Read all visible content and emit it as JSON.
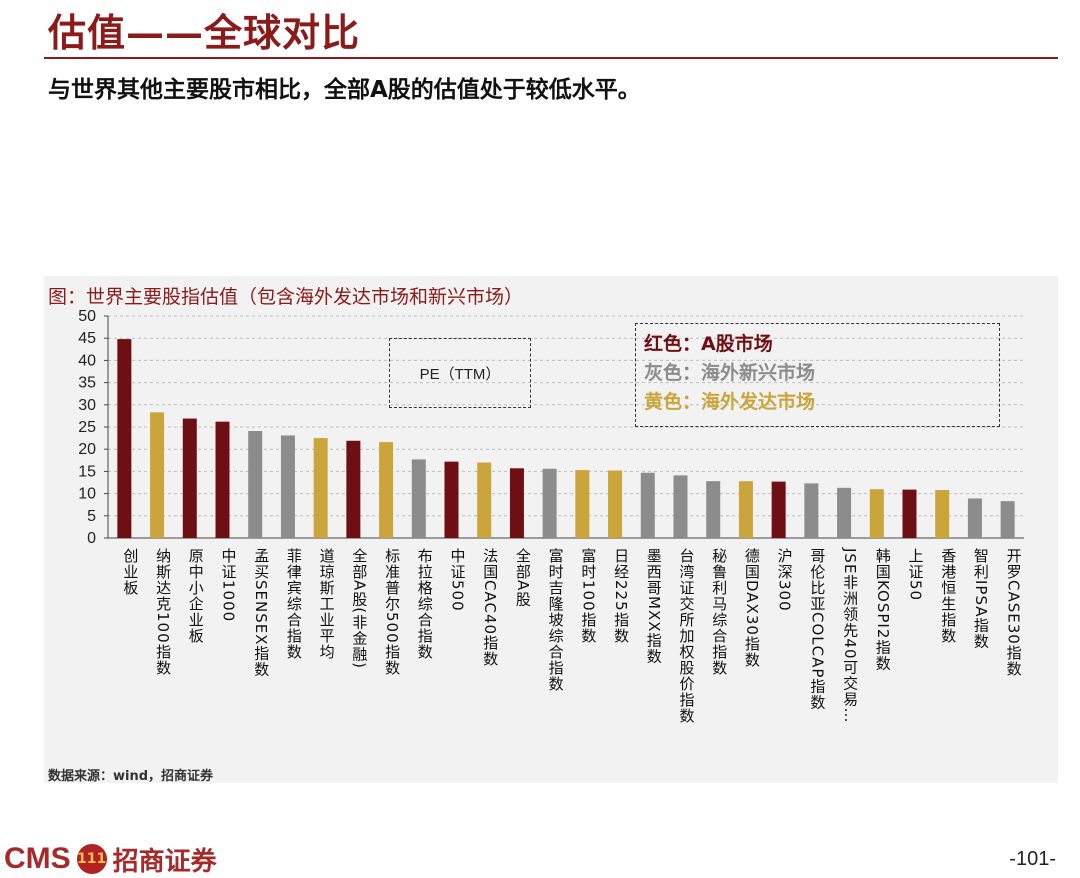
{
  "slide": {
    "title": "估值——全球对比",
    "subtitle": "与世界其他主要股市相比，全部A股的估值处于较低水平。"
  },
  "chart_title": "图：世界主要股指估值（包含海外发达市场和新兴市场）",
  "annotation": "PE（TTM）",
  "legend": {
    "red": "红色：A股市场",
    "gray": "灰色：海外新兴市场",
    "gold": "黄色：海外发达市场"
  },
  "colors": {
    "red": "#6e0f14",
    "gray": "#8c8c8c",
    "gold": "#c9a53b",
    "title": "#8b1a1a"
  },
  "source": "数据来源：wind，招商证券",
  "footer": {
    "logo_text": "CMS",
    "logo_emblem": "111",
    "logo_cn": "招商证券",
    "page_number": "-101-"
  },
  "chart_data": {
    "type": "bar",
    "title": "世界主要股指估值（包含海外发达市场和新兴市场）",
    "ylabel": "PE（TTM）",
    "ylim": [
      0,
      50
    ],
    "yticks": [
      "0",
      "5",
      "10",
      "15",
      "20",
      "25",
      "30",
      "35",
      "40",
      "45",
      "50"
    ],
    "categories": [
      "创业板",
      "纳斯达克100指数",
      "原中小企业板",
      "中证1000",
      "孟买SENSEX指数",
      "菲律宾综合指数",
      "道琼斯工业平均",
      "全部A股(非金融)",
      "标准普尔500指数",
      "布拉格综合指数",
      "中证500",
      "法国CAC40指数",
      "全部A股",
      "富时吉隆坡综合指数",
      "富时100指数",
      "日经225指数",
      "墨西哥MXX指数",
      "台湾证交所加权股价指数",
      "秘鲁利马综合指数",
      "德国DAX30指数",
      "沪深300",
      "哥伦比亚COLCAP指数",
      "JSE非洲领先40可交易…",
      "韩国KOSPI2指数",
      "上证50",
      "香港恒生指数",
      "智利IPSA指数",
      "开罗CASE30指数"
    ],
    "values": [
      44.8,
      28.3,
      26.9,
      26.2,
      24.1,
      23.1,
      22.5,
      21.9,
      21.6,
      17.7,
      17.2,
      17.0,
      15.7,
      15.6,
      15.3,
      15.2,
      14.7,
      14.1,
      12.8,
      12.8,
      12.7,
      12.3,
      11.3,
      11.0,
      10.9,
      10.8,
      8.9,
      8.3
    ],
    "groups": [
      "red",
      "gold",
      "red",
      "red",
      "gray",
      "gray",
      "gold",
      "red",
      "gold",
      "gray",
      "red",
      "gold",
      "red",
      "gray",
      "gold",
      "gold",
      "gray",
      "gray",
      "gray",
      "gold",
      "red",
      "gray",
      "gray",
      "gold",
      "red",
      "gold",
      "gray",
      "gray"
    ]
  }
}
